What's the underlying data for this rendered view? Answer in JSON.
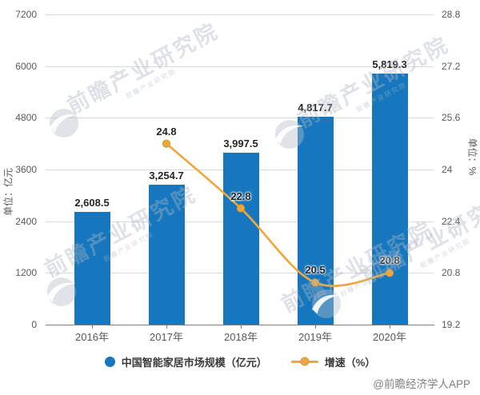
{
  "watermark": {
    "brand": "前瞻产业研究院",
    "credit": "@前瞻经济学人APP"
  },
  "chart_data": {
    "type": "bar",
    "subtype": "bar+line combo, dual axis",
    "categories": [
      "2016年",
      "2017年",
      "2018年",
      "2019年",
      "2020年"
    ],
    "series": [
      {
        "name": "中国智能家居市场规模（亿元）",
        "type": "bar",
        "axis": "left",
        "color": "#1677BE",
        "values": [
          2608.5,
          3254.7,
          3997.5,
          4817.7,
          5819.3
        ],
        "labels": [
          "2,608.5",
          "3,254.7",
          "3,997.5",
          "4,817.7",
          "5,819.3"
        ]
      },
      {
        "name": "增速（%）",
        "type": "line",
        "axis": "right",
        "color": "#EFA73C",
        "marker_border": "#D9952F",
        "values": [
          null,
          24.8,
          22.8,
          20.5,
          20.8
        ],
        "labels": [
          "",
          "24.8",
          "22.8",
          "20.5",
          "20.8"
        ]
      }
    ],
    "left_axis": {
      "title": "单位：亿元",
      "min": 0,
      "max": 7200,
      "ticks": [
        7200,
        6000,
        4800,
        3600,
        2400,
        1200,
        0
      ]
    },
    "right_axis": {
      "title": "单位：%",
      "min": 19.2,
      "max": 28.8,
      "ticks": [
        28.8,
        27.2,
        25.6,
        24,
        22.4,
        20.8,
        19.2
      ]
    },
    "grid": true,
    "legend_position": "bottom",
    "grid_color": "#D9D9D9",
    "axis_color": "#7F7F7F",
    "title": ""
  }
}
